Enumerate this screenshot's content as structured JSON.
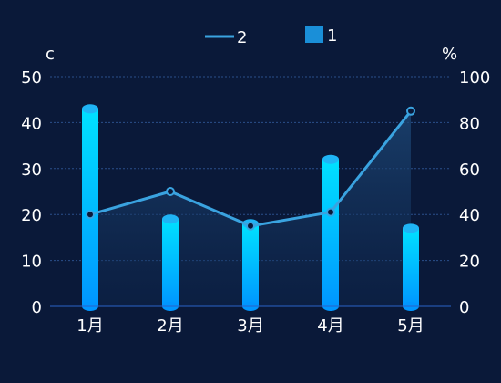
{
  "chart_data": {
    "type": "bar",
    "categories": [
      "1月",
      "2月",
      "3月",
      "4月",
      "5月"
    ],
    "series": [
      {
        "name": "1",
        "type": "bar",
        "axis": "left",
        "values": [
          43,
          19,
          18,
          32,
          17
        ]
      },
      {
        "name": "2",
        "type": "line",
        "axis": "right",
        "values": [
          40,
          50,
          35,
          41,
          85
        ]
      }
    ],
    "ylabel_left": "c",
    "ylabel_right": "%",
    "ylim_left": [
      0,
      50
    ],
    "ylim_right": [
      0,
      100
    ],
    "yticks_left": [
      "0",
      "10",
      "20",
      "30",
      "40",
      "50"
    ],
    "yticks_right": [
      "0",
      "20",
      "40",
      "60",
      "80",
      "100"
    ],
    "grid": "dotted horizontal",
    "legend_position": "top-center",
    "colors": {
      "background": "#0a1939",
      "bar_top": "#00e1ff",
      "bar_bottom": "#0096ff",
      "bar_cap": "#1fb4f5",
      "line": "#3aa3e0",
      "legend_bar": "#1a8fd8",
      "grid": "#2a4f8a"
    }
  }
}
